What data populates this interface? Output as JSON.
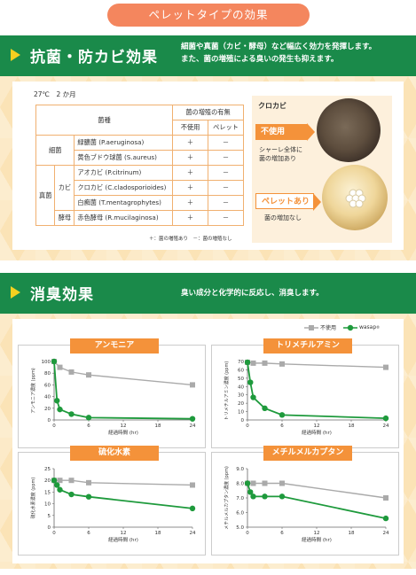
{
  "header": {
    "pill": "ペレットタイプの効果"
  },
  "antibac": {
    "title": "抗菌・防カビ効果",
    "desc": [
      "細菌や真菌（カビ・酵母）など幅広く効力を発揮します。",
      "また、菌の増殖による臭いの発生も抑えます。"
    ],
    "condition": "27℃　2 か月",
    "table": {
      "col_species": "菌種",
      "col_group": "菌の増殖の有無",
      "col_none": "不使用",
      "col_pellet": "ペレット",
      "bacteria_label": "細菌",
      "fungi_label": "真菌",
      "mold_label": "カビ",
      "yeast_label": "酵母",
      "rows": [
        {
          "name": "緑膿菌 (P.aeruginosa)",
          "none": "＋",
          "pellet": "－"
        },
        {
          "name": "黄色ブドウ球菌 (S.aureus)",
          "none": "＋",
          "pellet": "－"
        },
        {
          "name": "アオカビ (P.citrinum)",
          "none": "＋",
          "pellet": "－"
        },
        {
          "name": "クロカビ (C.cladosporioides)",
          "none": "＋",
          "pellet": "－"
        },
        {
          "name": "白癬菌 (T.mentagrophytes)",
          "none": "＋",
          "pellet": "－"
        },
        {
          "name": "赤色酵母 (R.mucilaginosa)",
          "none": "＋",
          "pellet": "－"
        }
      ],
      "legend": "＋：菌の増殖あり　－：菌の増殖なし"
    },
    "photo_panel": {
      "label": "クロカビ",
      "unused_tag": "不使用",
      "unused_desc": [
        "シャーレ全体に",
        "菌の増加あり"
      ],
      "pellet_tag": "ペレットあり",
      "pellet_desc": "菌の増加なし"
    }
  },
  "deodor": {
    "title": "消臭効果",
    "desc": "臭い成分と化学的に反応し、消臭します。",
    "legend_unused": "不使用",
    "legend_wasap": "wasap"
  },
  "colors": {
    "green": "#1a8a4a",
    "orange": "#f4923a",
    "gray": "#aaaaaa",
    "series_green": "#1e9a3c"
  },
  "chart_data": [
    {
      "type": "line",
      "title": "アンモニア",
      "ylabel": "アンモニア濃度 (ppm)",
      "xlabel": "経過時間 (hr)",
      "xticks": [
        0,
        6,
        12,
        18,
        24
      ],
      "yticks": [
        0,
        20,
        40,
        60,
        80,
        100
      ],
      "xlim": [
        0,
        24
      ],
      "ylim": [
        0,
        100
      ],
      "series": [
        {
          "name": "不使用",
          "x": [
            0,
            1,
            3,
            6,
            24
          ],
          "y": [
            100,
            90,
            82,
            77,
            60
          ]
        },
        {
          "name": "wasap",
          "x": [
            0,
            0.5,
            1,
            3,
            6,
            24
          ],
          "y": [
            100,
            33,
            18,
            10,
            4,
            2
          ]
        }
      ]
    },
    {
      "type": "line",
      "title": "トリメチルアミン",
      "ylabel": "トリメチルアミン濃度 (ppm)",
      "xlabel": "経過時間 (hr)",
      "xticks": [
        0,
        6,
        12,
        18,
        24
      ],
      "yticks": [
        0,
        10,
        20,
        30,
        40,
        50,
        60,
        70
      ],
      "xlim": [
        0,
        24
      ],
      "ylim": [
        0,
        70
      ],
      "series": [
        {
          "name": "不使用",
          "x": [
            0,
            1,
            3,
            6,
            24
          ],
          "y": [
            69,
            68,
            68,
            67,
            63
          ]
        },
        {
          "name": "wasap",
          "x": [
            0,
            0.5,
            1,
            3,
            6,
            24
          ],
          "y": [
            69,
            45,
            27,
            14,
            6,
            2
          ]
        }
      ]
    },
    {
      "type": "line",
      "title": "硫化水素",
      "ylabel": "硫化水素濃度 (ppm)",
      "xlabel": "経過時間 (hr)",
      "xticks": [
        0,
        6,
        12,
        18,
        24
      ],
      "yticks": [
        0,
        5,
        10,
        15,
        20,
        25
      ],
      "xlim": [
        0,
        24
      ],
      "ylim": [
        0,
        25
      ],
      "series": [
        {
          "name": "不使用",
          "x": [
            0,
            1,
            3,
            6,
            24
          ],
          "y": [
            20,
            20,
            20,
            19,
            18
          ]
        },
        {
          "name": "wasap",
          "x": [
            0,
            0.5,
            1,
            3,
            6,
            24
          ],
          "y": [
            20,
            18,
            16,
            14,
            13,
            8
          ]
        }
      ]
    },
    {
      "type": "line",
      "title": "メチルメルカプタン",
      "ylabel": "メチルメルカプタン濃度 (ppm)",
      "xlabel": "経過時間 (hr)",
      "xticks": [
        0,
        6,
        12,
        18,
        24
      ],
      "yticks": [
        5.0,
        6.0,
        7.0,
        8.0,
        9.0
      ],
      "xlim": [
        0,
        24
      ],
      "ylim": [
        5,
        9
      ],
      "series": [
        {
          "name": "不使用",
          "x": [
            0,
            1,
            3,
            6,
            24
          ],
          "y": [
            8,
            8,
            8,
            8,
            7
          ]
        },
        {
          "name": "wasap",
          "x": [
            0,
            0.5,
            1,
            3,
            6,
            24
          ],
          "y": [
            8,
            7.4,
            7.1,
            7.1,
            7.1,
            5.6
          ]
        }
      ]
    }
  ]
}
